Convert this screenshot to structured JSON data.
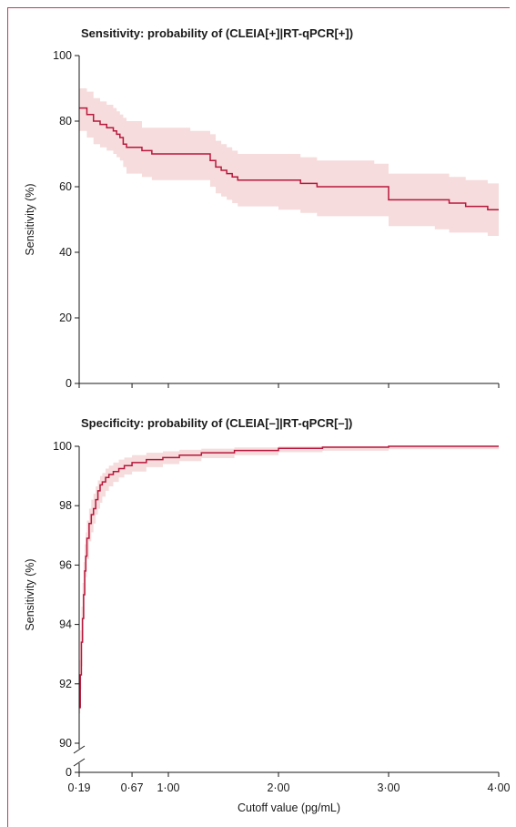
{
  "chart_data": [
    {
      "type": "line",
      "title": "Sensitivity: probability of (CLEIA[+]|RT-qPCR[+])",
      "ylabel": "Sensitivity (%)",
      "xlabel": "",
      "ylim": [
        0,
        100
      ],
      "yticks": [
        0,
        20,
        40,
        60,
        80,
        100
      ],
      "xlim": [
        0.19,
        4.0
      ],
      "xticks": [
        0.19,
        0.67,
        1.0,
        2.0,
        3.0,
        4.0
      ],
      "colors": {
        "line": "#b8173c",
        "band": "#f6dcdc"
      },
      "series": [
        {
          "x": [
            0.19,
            0.26,
            0.32,
            0.38,
            0.44,
            0.5,
            0.53,
            0.56,
            0.59,
            0.62,
            0.66,
            0.67,
            0.76,
            0.85,
            1.0,
            1.2,
            1.38,
            1.43,
            1.48,
            1.53,
            1.58,
            1.63,
            2.0,
            2.2,
            2.35,
            2.55,
            2.87,
            3.0,
            3.2,
            3.42,
            3.55,
            3.7,
            3.9,
            4.0
          ],
          "y": [
            84,
            82,
            80,
            79,
            78,
            77,
            76,
            75,
            73,
            72,
            72,
            72,
            71,
            70,
            70,
            70,
            68,
            66,
            65,
            64,
            63,
            62,
            62,
            61,
            60,
            60,
            60,
            56,
            56,
            56,
            55,
            54,
            53,
            53
          ],
          "lower": [
            77,
            75,
            73,
            72,
            71,
            70,
            69,
            68,
            66,
            64,
            64,
            64,
            63,
            62,
            62,
            62,
            60,
            58,
            57,
            56,
            55,
            54,
            53,
            52,
            51,
            51,
            51,
            48,
            48,
            47,
            46,
            46,
            45,
            44
          ],
          "upper": [
            90,
            89,
            87,
            86,
            85,
            84,
            83,
            82,
            81,
            80,
            80,
            80,
            78,
            78,
            78,
            77,
            76,
            74,
            73,
            72,
            71,
            70,
            70,
            69,
            68,
            68,
            67,
            64,
            64,
            64,
            63,
            62,
            61,
            61
          ]
        }
      ]
    },
    {
      "type": "line",
      "title": "Specificity: probability of (CLEIA[–]|RT-qPCR[–])",
      "ylabel": "Sensitivity (%)",
      "xlabel": "Cutoff value (pg/mL)",
      "ylim": [
        90,
        100
      ],
      "yticks": [
        90,
        92,
        94,
        96,
        98,
        100
      ],
      "axis_break": true,
      "zero_tick": "0",
      "xlim": [
        0.19,
        4.0
      ],
      "xticks": [
        0.19,
        0.67,
        1.0,
        2.0,
        3.0,
        4.0
      ],
      "colors": {
        "line": "#b8173c",
        "band": "#f6dcdc"
      },
      "series": [
        {
          "x": [
            0.19,
            0.2,
            0.21,
            0.22,
            0.23,
            0.24,
            0.25,
            0.26,
            0.28,
            0.3,
            0.32,
            0.34,
            0.36,
            0.38,
            0.4,
            0.43,
            0.46,
            0.5,
            0.55,
            0.6,
            0.67,
            0.8,
            0.95,
            1.1,
            1.3,
            1.6,
            2.0,
            2.4,
            3.0,
            4.0
          ],
          "y": [
            91.2,
            92.3,
            93.4,
            94.2,
            95.0,
            95.8,
            96.3,
            96.9,
            97.4,
            97.7,
            97.9,
            98.2,
            98.5,
            98.7,
            98.8,
            98.95,
            99.05,
            99.15,
            99.25,
            99.35,
            99.45,
            99.55,
            99.62,
            99.7,
            99.78,
            99.86,
            99.93,
            99.97,
            100.0,
            100.0
          ],
          "lower": [
            91.0,
            91.8,
            92.6,
            93.4,
            94.2,
            95.0,
            95.6,
            96.2,
            96.8,
            97.1,
            97.4,
            97.7,
            97.9,
            98.1,
            98.3,
            98.5,
            98.65,
            98.8,
            98.95,
            99.05,
            99.15,
            99.3,
            99.4,
            99.5,
            99.6,
            99.7,
            99.8,
            99.85,
            99.9,
            99.9
          ],
          "upper": [
            92.8,
            93.8,
            94.6,
            95.4,
            96.1,
            96.7,
            97.1,
            97.5,
            97.9,
            98.2,
            98.4,
            98.65,
            98.85,
            99.0,
            99.1,
            99.25,
            99.35,
            99.45,
            99.55,
            99.62,
            99.7,
            99.78,
            99.83,
            99.88,
            99.92,
            99.96,
            100.0,
            100.0,
            100.0,
            100.0
          ]
        }
      ]
    }
  ]
}
